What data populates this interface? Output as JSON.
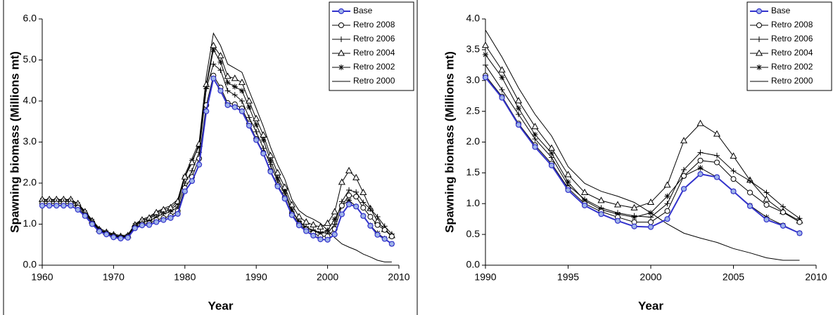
{
  "chart_data": [
    {
      "type": "line",
      "x_label": "Year",
      "y_label": "Spawning biomass (Millions mt)",
      "x": [
        1960,
        1961,
        1962,
        1963,
        1964,
        1965,
        1966,
        1967,
        1968,
        1969,
        1970,
        1971,
        1972,
        1973,
        1974,
        1975,
        1976,
        1977,
        1978,
        1979,
        1980,
        1981,
        1982,
        1983,
        1984,
        1985,
        1986,
        1987,
        1988,
        1989,
        1990,
        1991,
        1992,
        1993,
        1994,
        1995,
        1996,
        1997,
        1998,
        1999,
        2000,
        2001,
        2002,
        2003,
        2004,
        2005,
        2006,
        2007,
        2008,
        2009
      ],
      "xlim": [
        1960,
        2010
      ],
      "xticks": [
        1960,
        1970,
        1980,
        1990,
        2000,
        2010
      ],
      "ylim": [
        0,
        6
      ],
      "yticks": [
        {
          "value": 0,
          "label": "0.0"
        },
        {
          "value": 1,
          "label": "1.0"
        },
        {
          "value": 2,
          "label": "2.0"
        },
        {
          "value": 3,
          "label": "3.0"
        },
        {
          "value": 4,
          "label": "4.0"
        },
        {
          "value": 5,
          "label": "5.0"
        },
        {
          "value": 6,
          "label": "6.0"
        }
      ],
      "legend": "upper right",
      "series": [
        {
          "name": "Base",
          "color": "#3333cc",
          "marker": "circle-filled",
          "values": [
            1.45,
            1.45,
            1.45,
            1.45,
            1.45,
            1.35,
            1.2,
            1.0,
            0.82,
            0.75,
            0.68,
            0.65,
            0.67,
            0.9,
            0.97,
            0.98,
            1.05,
            1.1,
            1.15,
            1.25,
            1.8,
            2.05,
            2.45,
            3.75,
            4.55,
            4.25,
            3.9,
            3.85,
            3.75,
            3.4,
            3.05,
            2.72,
            2.28,
            1.92,
            1.62,
            1.22,
            0.97,
            0.83,
            0.72,
            0.63,
            0.62,
            0.75,
            1.24,
            1.48,
            1.43,
            1.2,
            0.96,
            0.74,
            0.64,
            0.52
          ]
        },
        {
          "name": "Retro 2008",
          "color": "#000000",
          "marker": "circle",
          "values": [
            1.5,
            1.5,
            1.5,
            1.5,
            1.5,
            1.4,
            1.22,
            1.02,
            0.84,
            0.76,
            0.7,
            0.67,
            0.69,
            0.92,
            1.0,
            1.02,
            1.1,
            1.15,
            1.2,
            1.32,
            1.88,
            2.15,
            2.6,
            3.9,
            4.62,
            4.33,
            3.95,
            3.92,
            3.82,
            3.45,
            3.08,
            2.74,
            2.3,
            1.95,
            1.65,
            1.25,
            1.0,
            0.87,
            0.78,
            0.7,
            0.7,
            0.88,
            1.45,
            1.7,
            1.67,
            1.4,
            1.18,
            0.98,
            0.86,
            0.7
          ]
        },
        {
          "name": "Retro 2006",
          "color": "#000000",
          "marker": "plus",
          "values": [
            1.55,
            1.55,
            1.55,
            1.55,
            1.55,
            1.45,
            1.25,
            1.05,
            0.85,
            0.78,
            0.72,
            0.68,
            0.7,
            0.95,
            1.05,
            1.08,
            1.18,
            1.25,
            1.3,
            1.42,
            2.0,
            2.3,
            2.75,
            4.3,
            4.9,
            4.75,
            4.25,
            4.15,
            4.0,
            3.6,
            3.25,
            2.85,
            2.45,
            2.05,
            1.75,
            1.3,
            1.07,
            0.93,
            0.85,
            0.8,
            0.78,
            1.0,
            1.55,
            1.83,
            1.78,
            1.53,
            1.37,
            1.18,
            0.95,
            0.76
          ]
        },
        {
          "name": "Retro 2004",
          "color": "#000000",
          "marker": "triangle",
          "values": [
            1.6,
            1.6,
            1.6,
            1.6,
            1.6,
            1.5,
            1.3,
            1.08,
            0.87,
            0.8,
            0.74,
            0.7,
            0.72,
            0.98,
            1.1,
            1.15,
            1.28,
            1.35,
            1.4,
            1.55,
            2.15,
            2.5,
            2.95,
            4.4,
            5.35,
            5.1,
            4.6,
            4.55,
            4.45,
            4.0,
            3.57,
            3.17,
            2.67,
            2.25,
            1.9,
            1.47,
            1.18,
            1.05,
            0.98,
            0.93,
            1.02,
            1.3,
            2.02,
            2.3,
            2.13,
            1.77,
            1.38,
            1.07,
            0.87,
            0.72
          ]
        },
        {
          "name": "Retro 2002",
          "color": "#000000",
          "marker": "star",
          "values": [
            1.58,
            1.58,
            1.58,
            1.58,
            1.58,
            1.48,
            1.28,
            1.07,
            0.86,
            0.79,
            0.73,
            0.69,
            0.71,
            0.97,
            1.08,
            1.12,
            1.25,
            1.3,
            1.35,
            1.5,
            2.15,
            2.55,
            2.9,
            4.35,
            5.25,
            4.95,
            4.45,
            4.35,
            4.25,
            3.85,
            3.42,
            3.05,
            2.55,
            2.12,
            1.82,
            1.35,
            1.05,
            0.9,
            0.83,
            0.78,
            0.85,
            1.12,
            1.45,
            1.58,
            1.43,
            1.2,
            0.97,
            0.78,
            0.65,
            0.52
          ]
        },
        {
          "name": "Retro 2000",
          "color": "#000000",
          "marker": "none",
          "values": [
            1.6,
            1.6,
            1.6,
            1.6,
            1.6,
            1.5,
            1.32,
            1.1,
            0.9,
            0.82,
            0.76,
            0.72,
            0.74,
            1.0,
            1.12,
            1.18,
            1.3,
            1.38,
            1.45,
            1.6,
            2.2,
            2.6,
            3.0,
            4.6,
            5.65,
            5.35,
            4.9,
            4.8,
            4.7,
            4.25,
            3.82,
            3.38,
            2.88,
            2.45,
            2.1,
            1.6,
            1.33,
            1.2,
            1.12,
            1.02,
            0.85,
            0.67,
            0.52,
            0.44,
            0.37,
            0.27,
            0.2,
            0.12,
            0.08,
            0.08
          ]
        }
      ]
    },
    {
      "type": "line",
      "x_label": "Year",
      "y_label": "Spawning biomass (Millions mt)",
      "x": [
        1990,
        1991,
        1992,
        1993,
        1994,
        1995,
        1996,
        1997,
        1998,
        1999,
        2000,
        2001,
        2002,
        2003,
        2004,
        2005,
        2006,
        2007,
        2008,
        2009
      ],
      "xlim": [
        1990,
        2010
      ],
      "xticks": [
        1990,
        1995,
        2000,
        2005,
        2010
      ],
      "ylim": [
        0,
        4
      ],
      "yticks": [
        {
          "value": 0,
          "label": "0.0"
        },
        {
          "value": 0.5,
          "label": "0.5"
        },
        {
          "value": 1,
          "label": "1.0"
        },
        {
          "value": 1.5,
          "label": "1.5"
        },
        {
          "value": 2,
          "label": "2.0"
        },
        {
          "value": 2.5,
          "label": "2.5"
        },
        {
          "value": 3,
          "label": "3.0"
        },
        {
          "value": 3.5,
          "label": "3.5"
        },
        {
          "value": 4,
          "label": "4.0"
        }
      ],
      "legend": "upper right",
      "series": [
        {
          "name": "Base",
          "color": "#3333cc",
          "marker": "circle-filled",
          "values": [
            3.05,
            2.72,
            2.28,
            1.92,
            1.62,
            1.22,
            0.97,
            0.83,
            0.72,
            0.63,
            0.62,
            0.75,
            1.24,
            1.48,
            1.43,
            1.2,
            0.96,
            0.74,
            0.64,
            0.52
          ]
        },
        {
          "name": "Retro 2008",
          "color": "#000000",
          "marker": "circle",
          "values": [
            3.08,
            2.74,
            2.3,
            1.95,
            1.65,
            1.25,
            1.0,
            0.87,
            0.78,
            0.7,
            0.7,
            0.88,
            1.45,
            1.7,
            1.67,
            1.4,
            1.18,
            0.98,
            0.86,
            0.7
          ]
        },
        {
          "name": "Retro 2006",
          "color": "#000000",
          "marker": "plus",
          "values": [
            3.25,
            2.85,
            2.45,
            2.05,
            1.75,
            1.3,
            1.07,
            0.93,
            0.85,
            0.8,
            0.78,
            1.0,
            1.55,
            1.83,
            1.78,
            1.53,
            1.37,
            1.18,
            0.95,
            0.76
          ]
        },
        {
          "name": "Retro 2004",
          "color": "#000000",
          "marker": "triangle",
          "values": [
            3.57,
            3.17,
            2.67,
            2.25,
            1.9,
            1.47,
            1.18,
            1.05,
            0.98,
            0.93,
            1.02,
            1.3,
            2.02,
            2.3,
            2.13,
            1.77,
            1.38,
            1.07,
            0.87,
            0.72
          ]
        },
        {
          "name": "Retro 2002",
          "color": "#000000",
          "marker": "star",
          "values": [
            3.42,
            3.05,
            2.55,
            2.12,
            1.82,
            1.35,
            1.05,
            0.9,
            0.83,
            0.78,
            0.85,
            1.12,
            1.45,
            1.58,
            1.43,
            1.2,
            0.97,
            0.78,
            0.65,
            0.52
          ]
        },
        {
          "name": "Retro 2000",
          "color": "#000000",
          "marker": "none",
          "values": [
            3.82,
            3.38,
            2.88,
            2.45,
            2.1,
            1.6,
            1.33,
            1.2,
            1.12,
            1.02,
            0.85,
            0.67,
            0.52,
            0.44,
            0.37,
            0.27,
            0.2,
            0.12,
            0.08,
            0.08
          ]
        }
      ]
    }
  ]
}
